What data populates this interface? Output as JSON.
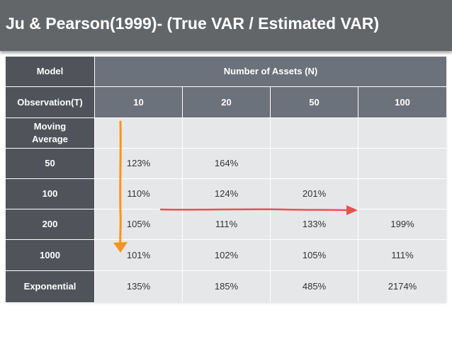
{
  "title": "Ju & Pearson(1999)- (True VAR / Estimated VAR)",
  "table": {
    "model_label": "Model",
    "observation_label": "Observation(T)",
    "assets_header": "Number of Assets (N)",
    "asset_counts": [
      "10",
      "20",
      "50",
      "100"
    ],
    "section_label": "Moving Average",
    "rows": [
      {
        "label": "50",
        "values": [
          "123%",
          "164%",
          "",
          ""
        ]
      },
      {
        "label": "100",
        "values": [
          "110%",
          "124%",
          "201%",
          ""
        ]
      },
      {
        "label": "200",
        "values": [
          "105%",
          "111%",
          "133%",
          "199%"
        ]
      },
      {
        "label": "1000",
        "values": [
          "101%",
          "102%",
          "105%",
          "111%"
        ]
      },
      {
        "label": "Exponential",
        "values": [
          "135%",
          "185%",
          "485%",
          "2174%"
        ]
      }
    ]
  },
  "arrows": {
    "vertical_color": "#f7941d",
    "horizontal_color": "#e8514f"
  }
}
